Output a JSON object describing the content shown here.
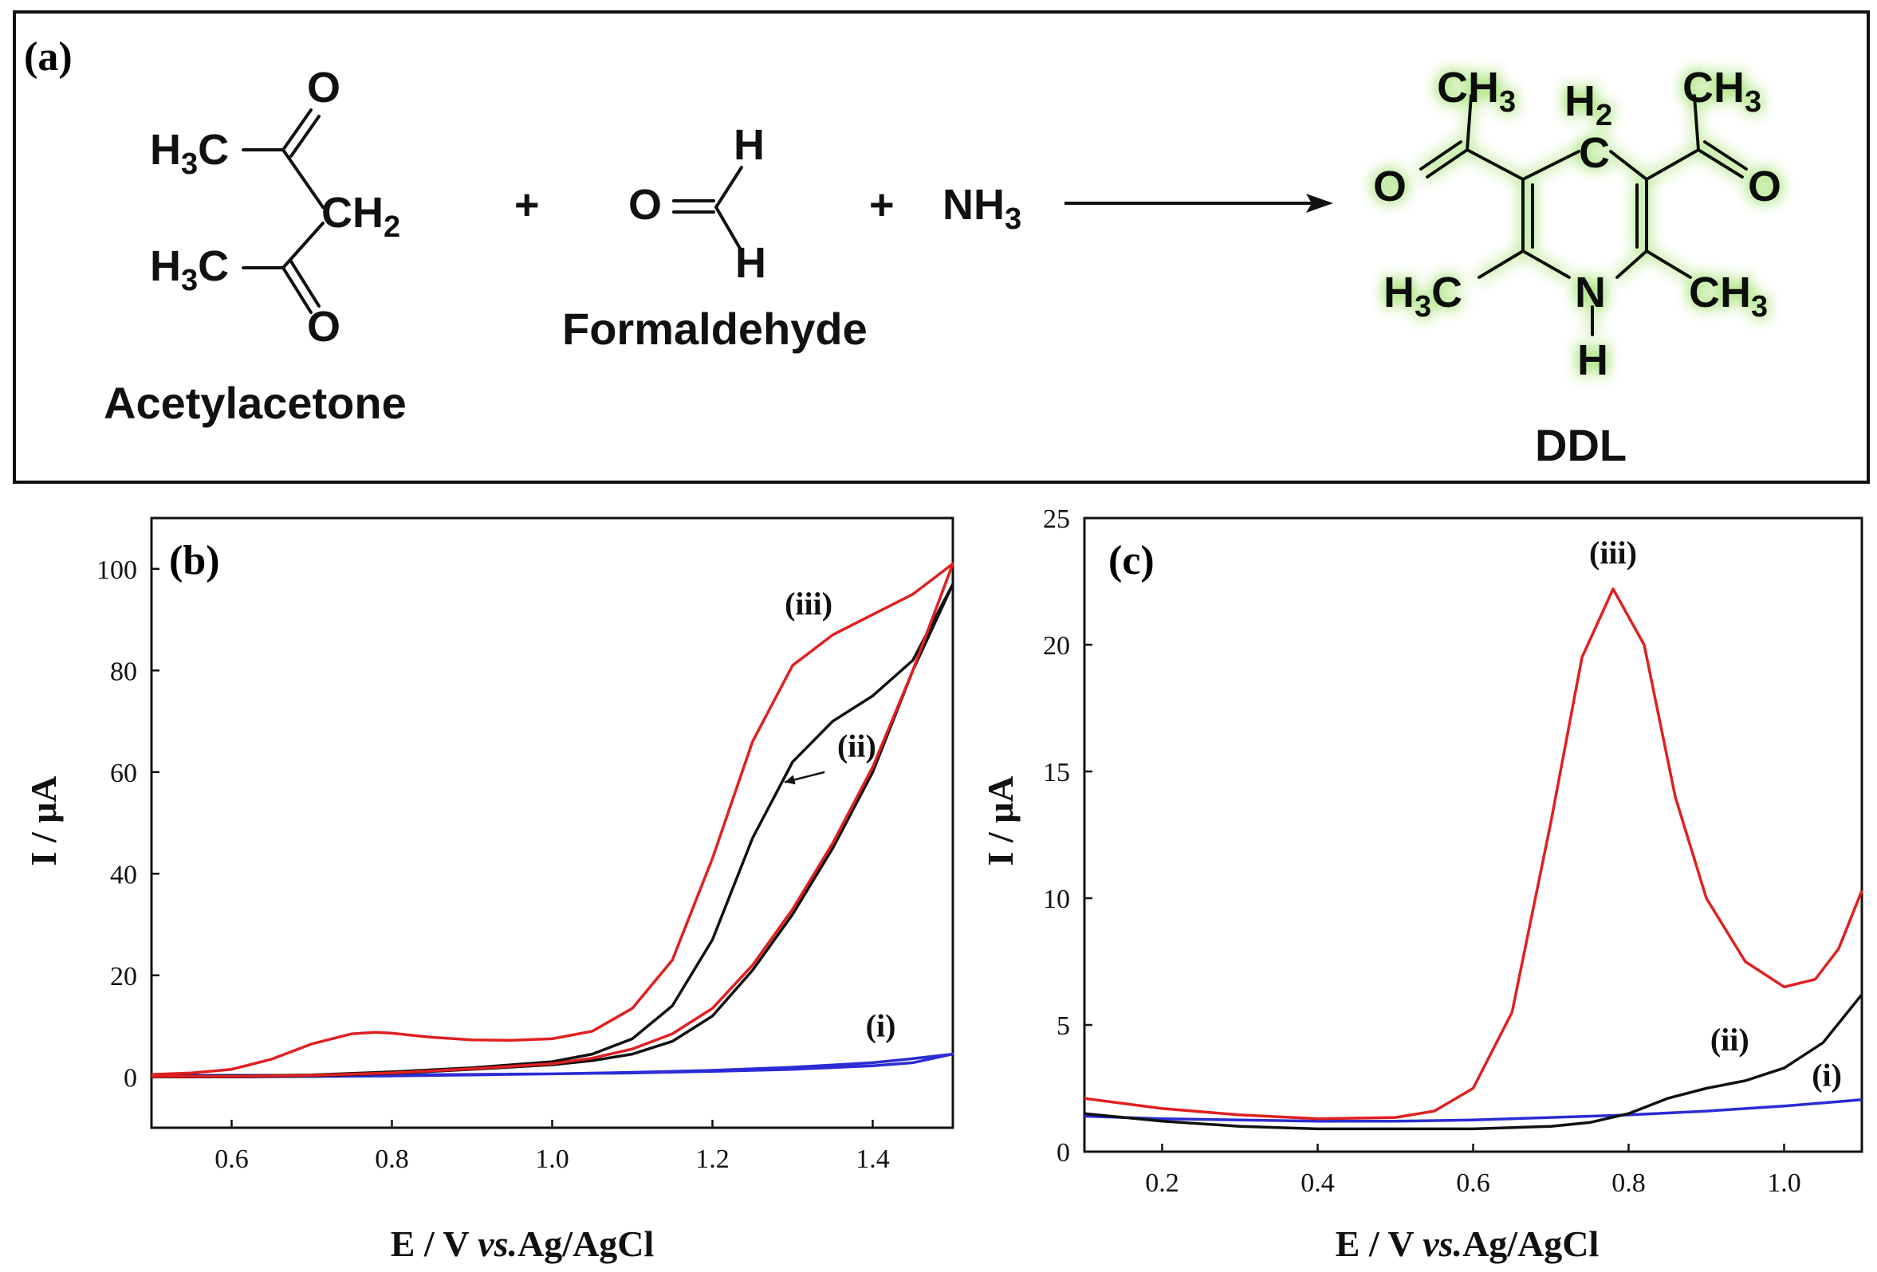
{
  "panel_a": {
    "label": "(a)",
    "reactant1_name": "Acetylacetone",
    "reactant2_name": "Formaldehyde",
    "product_name": "DDL",
    "plus": "+",
    "ammonia": "NH",
    "ammonia_sub": "3",
    "glow_color": "#9ee06a",
    "atoms": {
      "O": "O",
      "H": "H",
      "N": "N",
      "C": "C",
      "H3C_main": "H",
      "H3C_sub": "3",
      "H3C_tail": "C",
      "CH2_main": "CH",
      "CH2_sub": "2",
      "CH3_main": "CH",
      "CH3_sub": "3",
      "H2_main": "H",
      "H2_sub": "2"
    }
  },
  "chart_data": [
    {
      "type": "line",
      "panel": "(b)",
      "xlabel_parts": [
        "E / V ",
        "vs.",
        "Ag/AgCl"
      ],
      "ylabel": "I / μA",
      "xlim": [
        0.5,
        1.5
      ],
      "ylim": [
        -10,
        110
      ],
      "xticks": [
        0.6,
        0.8,
        1.0,
        1.2,
        1.4
      ],
      "yticks": [
        0,
        20,
        40,
        60,
        80,
        100
      ],
      "series": [
        {
          "name": "(i)",
          "color": "#2b2bd6",
          "x": [
            0.5,
            0.6,
            0.7,
            0.8,
            0.9,
            1.0,
            1.1,
            1.2,
            1.3,
            1.4,
            1.45,
            1.5,
            1.45,
            1.4,
            1.3,
            1.2,
            1.1,
            1.0,
            0.9,
            0.8,
            0.7,
            0.6,
            0.5
          ],
          "y": [
            0.3,
            0.3,
            0.3,
            0.4,
            0.5,
            0.6,
            0.8,
            1.1,
            1.5,
            2.2,
            2.8,
            4.5,
            3.6,
            2.8,
            1.9,
            1.3,
            0.9,
            0.6,
            0.4,
            0.2,
            0.1,
            0.0,
            0.0
          ]
        },
        {
          "name": "(ii)",
          "color": "#111111",
          "x": [
            0.5,
            0.6,
            0.7,
            0.8,
            0.9,
            1.0,
            1.05,
            1.1,
            1.15,
            1.2,
            1.25,
            1.3,
            1.35,
            1.4,
            1.45,
            1.5,
            1.45,
            1.4,
            1.35,
            1.3,
            1.25,
            1.2,
            1.15,
            1.1,
            1.05,
            1.0,
            0.9,
            0.8,
            0.7,
            0.6,
            0.5
          ],
          "y": [
            0.1,
            0.2,
            0.4,
            1.0,
            1.8,
            3.0,
            4.5,
            7.5,
            14.0,
            27.0,
            47.0,
            62.0,
            70.0,
            75.0,
            82.0,
            97.0,
            80.0,
            60.0,
            45.0,
            32.0,
            21.0,
            12.0,
            7.0,
            4.5,
            3.2,
            2.4,
            1.5,
            0.7,
            0.2,
            0.0,
            0.0
          ]
        },
        {
          "name": "(iii)",
          "color": "#e02020",
          "x": [
            0.5,
            0.55,
            0.6,
            0.65,
            0.7,
            0.75,
            0.78,
            0.8,
            0.85,
            0.9,
            0.95,
            1.0,
            1.05,
            1.1,
            1.15,
            1.2,
            1.25,
            1.3,
            1.35,
            1.4,
            1.45,
            1.5,
            1.45,
            1.4,
            1.35,
            1.3,
            1.25,
            1.2,
            1.15,
            1.1,
            1.05,
            1.0,
            0.9,
            0.8,
            0.7,
            0.6,
            0.5
          ],
          "y": [
            0.5,
            0.8,
            1.5,
            3.5,
            6.5,
            8.5,
            8.8,
            8.6,
            7.8,
            7.3,
            7.2,
            7.5,
            9.0,
            13.5,
            23.0,
            43.0,
            66.0,
            81.0,
            87.0,
            91.0,
            95.0,
            101.0,
            80.0,
            61.0,
            46.0,
            33.0,
            22.0,
            13.5,
            8.5,
            5.5,
            3.7,
            2.6,
            1.6,
            0.8,
            0.3,
            0.1,
            0.1
          ]
        }
      ],
      "annotations": [
        {
          "text": "(iii)",
          "x": 1.32,
          "y": 91
        },
        {
          "text": "(ii)",
          "x": 1.38,
          "y": 63
        },
        {
          "text": "(i)",
          "x": 1.41,
          "y": 8
        }
      ],
      "arrow": {
        "from": [
          1.34,
          60
        ],
        "to": [
          1.29,
          58
        ]
      }
    },
    {
      "type": "line",
      "panel": "(c)",
      "xlabel_parts": [
        "E / V ",
        "vs.",
        "Ag/AgCl"
      ],
      "ylabel": "I / μA",
      "xlim": [
        0.1,
        1.1
      ],
      "ylim": [
        0,
        25
      ],
      "xticks": [
        0.2,
        0.4,
        0.6,
        0.8,
        1.0
      ],
      "yticks": [
        0,
        5,
        10,
        15,
        20,
        25
      ],
      "series": [
        {
          "name": "(i)",
          "color": "#2b2bd6",
          "x": [
            0.1,
            0.2,
            0.3,
            0.4,
            0.5,
            0.6,
            0.7,
            0.8,
            0.9,
            1.0,
            1.1
          ],
          "y": [
            1.4,
            1.3,
            1.25,
            1.2,
            1.2,
            1.25,
            1.35,
            1.45,
            1.6,
            1.8,
            2.05
          ]
        },
        {
          "name": "(ii)",
          "color": "#111111",
          "x": [
            0.1,
            0.2,
            0.3,
            0.4,
            0.5,
            0.6,
            0.7,
            0.75,
            0.8,
            0.85,
            0.9,
            0.95,
            1.0,
            1.05,
            1.1
          ],
          "y": [
            1.5,
            1.2,
            1.0,
            0.9,
            0.9,
            0.9,
            1.0,
            1.15,
            1.5,
            2.1,
            2.5,
            2.8,
            3.3,
            4.3,
            6.2
          ]
        },
        {
          "name": "(iii)",
          "color": "#e02020",
          "x": [
            0.1,
            0.2,
            0.3,
            0.4,
            0.5,
            0.55,
            0.6,
            0.65,
            0.7,
            0.74,
            0.78,
            0.82,
            0.86,
            0.9,
            0.95,
            1.0,
            1.04,
            1.07,
            1.1
          ],
          "y": [
            2.1,
            1.7,
            1.45,
            1.3,
            1.35,
            1.6,
            2.5,
            5.5,
            13.0,
            19.5,
            22.2,
            20.0,
            14.0,
            10.0,
            7.5,
            6.5,
            6.8,
            8.0,
            10.3
          ]
        }
      ],
      "annotations": [
        {
          "text": "(iii)",
          "x": 0.78,
          "y": 23.2
        },
        {
          "text": "(ii)",
          "x": 0.93,
          "y": 4.0
        },
        {
          "text": "(i)",
          "x": 1.055,
          "y": 2.6
        }
      ]
    }
  ]
}
